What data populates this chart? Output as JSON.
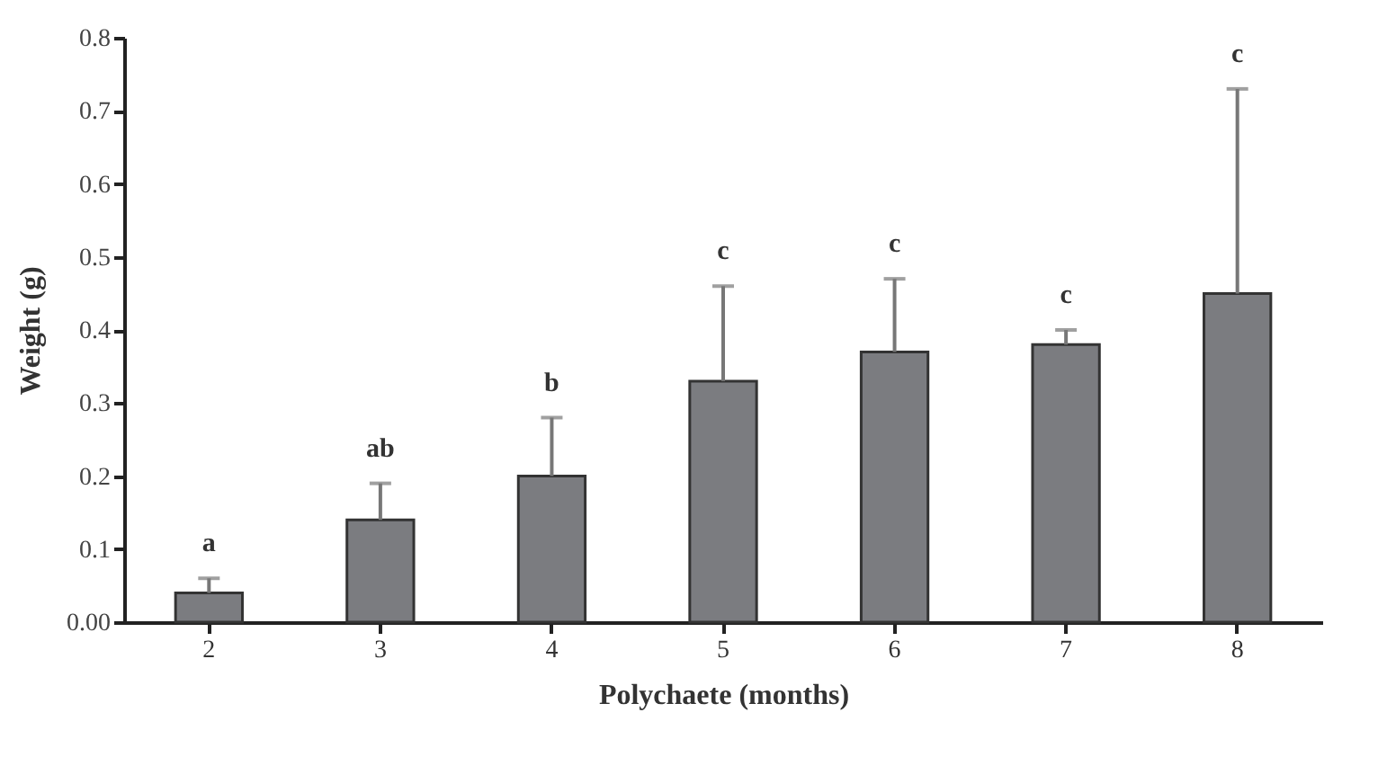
{
  "chart_data": {
    "type": "bar",
    "xlabel": "Polychaete (months)",
    "ylabel": "Weight (g)",
    "categories": [
      "2",
      "3",
      "4",
      "5",
      "6",
      "7",
      "8"
    ],
    "values": [
      0.04,
      0.14,
      0.2,
      0.33,
      0.37,
      0.38,
      0.45
    ],
    "errors": [
      [
        0.04,
        0.06
      ],
      [
        0.14,
        0.19
      ],
      [
        0.2,
        0.28
      ],
      [
        0.33,
        0.46
      ],
      [
        0.37,
        0.47
      ],
      [
        0.38,
        0.4
      ],
      [
        0.45,
        0.73
      ]
    ],
    "color": "#7b7c80",
    "ylim": [
      0,
      0.8
    ],
    "yticks": [
      {
        "value": 0,
        "label": "0.00"
      },
      0.1,
      0.2,
      0.3,
      0.4,
      0.5,
      0.6,
      0.7,
      0.8
    ],
    "annotations": [
      {
        "text": "a",
        "x": "2",
        "y": 0.06
      },
      {
        "text": "ab",
        "x": "3",
        "y": 0.19
      },
      {
        "text": "b",
        "x": "4",
        "y": 0.28
      },
      {
        "text": "c",
        "x": "5",
        "y": 0.46
      },
      {
        "text": "c",
        "x": "6",
        "y": 0.47
      },
      {
        "text": "c",
        "x": "7",
        "y": 0.4
      },
      {
        "text": "c",
        "x": "8",
        "y": 0.73
      }
    ]
  }
}
